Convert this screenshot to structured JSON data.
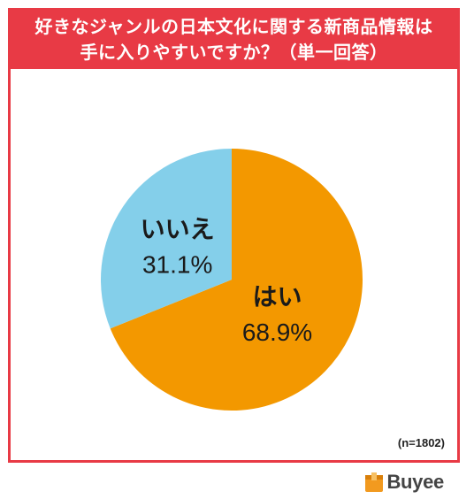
{
  "title_lines": [
    "好きなジャンルの日本文化に関する新商品情報は",
    "手に入りやすいですか？（単一回答）"
  ],
  "sample_note": "(n=1802)",
  "brand": {
    "logo_text": "Buyee",
    "logo_icon": "buyee-box-icon",
    "logo_color": "#f29a1f"
  },
  "colors": {
    "frame": "#e83a45",
    "title_bg": "#e83a45",
    "title_text": "#ffffff",
    "label_text": "#1a1a1a"
  },
  "chart_data": {
    "type": "pie",
    "title": "好きなジャンルの日本文化に関する新商品情報は手に入りやすいですか？（単一回答）",
    "start": "12 o'clock",
    "direction": "clockwise",
    "slices": [
      {
        "label": "はい",
        "value": 68.9,
        "value_label": "68.9%",
        "color": "#f39800"
      },
      {
        "label": "いいえ",
        "value": 31.1,
        "value_label": "31.1%",
        "color": "#84cfea"
      }
    ],
    "n": 1802
  }
}
